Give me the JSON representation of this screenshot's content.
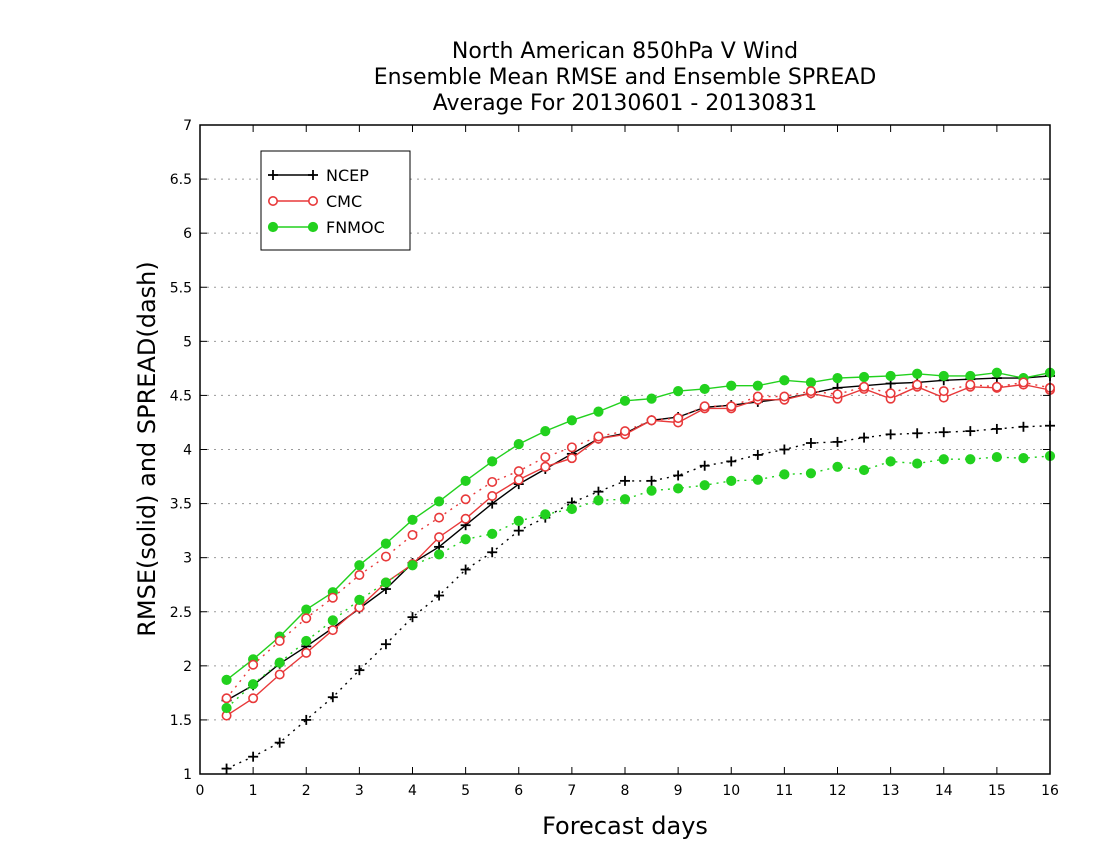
{
  "chart_data": {
    "type": "line",
    "title": [
      "North American 850hPa V Wind",
      "Ensemble Mean RMSE and Ensemble SPREAD",
      "Average For 20130601 - 20130831"
    ],
    "xlabel": "Forecast days",
    "ylabel": "RMSE(solid) and SPREAD(dash)",
    "xlim": [
      0,
      16
    ],
    "ylim": [
      1,
      7
    ],
    "xticks": [
      "0",
      "1",
      "2",
      "3",
      "4",
      "5",
      "6",
      "7",
      "8",
      "9",
      "10",
      "11",
      "12",
      "13",
      "14",
      "15",
      "16"
    ],
    "yticks": [
      "1",
      "1.5",
      "2",
      "2.5",
      "3",
      "3.5",
      "4",
      "4.5",
      "5",
      "5.5",
      "6",
      "6.5",
      "7"
    ],
    "grid": "horizontal dotted",
    "legend_position": "top-left",
    "x": [
      0.5,
      1,
      1.5,
      2,
      2.5,
      3,
      3.5,
      4,
      4.5,
      5,
      5.5,
      6,
      6.5,
      7,
      7.5,
      8,
      8.5,
      9,
      9.5,
      10,
      10.5,
      11,
      11.5,
      12,
      12.5,
      13,
      13.5,
      14,
      14.5,
      15,
      15.5,
      16
    ],
    "series": [
      {
        "name": "NCEP",
        "kind": "rmse",
        "color": "#000000",
        "marker": "plus",
        "dashed": false,
        "values": [
          1.68,
          1.82,
          2.02,
          2.18,
          2.35,
          2.53,
          2.71,
          2.95,
          3.1,
          3.3,
          3.5,
          3.68,
          3.82,
          3.96,
          4.1,
          4.15,
          4.27,
          4.3,
          4.39,
          4.41,
          4.44,
          4.47,
          4.52,
          4.57,
          4.59,
          4.61,
          4.62,
          4.64,
          4.65,
          4.66,
          4.66,
          4.68
        ]
      },
      {
        "name": "CMC",
        "kind": "rmse",
        "color": "#e8393a",
        "marker": "open-circle",
        "dashed": false,
        "values": [
          1.54,
          1.7,
          1.92,
          2.12,
          2.33,
          2.54,
          2.77,
          2.94,
          3.19,
          3.36,
          3.57,
          3.72,
          3.84,
          3.92,
          4.1,
          4.14,
          4.27,
          4.25,
          4.38,
          4.38,
          4.46,
          4.46,
          4.52,
          4.47,
          4.56,
          4.47,
          4.58,
          4.48,
          4.58,
          4.57,
          4.6,
          4.55
        ]
      },
      {
        "name": "FNMOC",
        "kind": "rmse",
        "color": "#22d11e",
        "marker": "filled-circle",
        "dashed": false,
        "values": [
          1.87,
          2.06,
          2.27,
          2.52,
          2.68,
          2.93,
          3.13,
          3.35,
          3.52,
          3.71,
          3.89,
          4.05,
          4.17,
          4.27,
          4.35,
          4.45,
          4.47,
          4.54,
          4.56,
          4.59,
          4.59,
          4.64,
          4.62,
          4.66,
          4.67,
          4.68,
          4.7,
          4.68,
          4.68,
          4.71,
          4.66,
          4.71
        ]
      },
      {
        "name": "NCEP",
        "kind": "spread",
        "color": "#000000",
        "marker": "plus",
        "dashed": true,
        "values": [
          1.05,
          1.16,
          1.29,
          1.5,
          1.71,
          1.96,
          2.2,
          2.45,
          2.65,
          2.89,
          3.05,
          3.25,
          3.37,
          3.51,
          3.61,
          3.71,
          3.71,
          3.76,
          3.85,
          3.89,
          3.95,
          4.0,
          4.06,
          4.07,
          4.11,
          4.14,
          4.15,
          4.16,
          4.17,
          4.19,
          4.21,
          4.22
        ]
      },
      {
        "name": "CMC",
        "kind": "spread",
        "color": "#e8393a",
        "marker": "open-circle",
        "dashed": true,
        "values": [
          1.7,
          2.01,
          2.23,
          2.44,
          2.63,
          2.84,
          3.01,
          3.21,
          3.37,
          3.54,
          3.7,
          3.8,
          3.93,
          4.02,
          4.12,
          4.17,
          4.27,
          4.29,
          4.4,
          4.4,
          4.49,
          4.49,
          4.54,
          4.51,
          4.58,
          4.52,
          4.6,
          4.54,
          4.6,
          4.58,
          4.62,
          4.57
        ]
      },
      {
        "name": "FNMOC",
        "kind": "spread",
        "color": "#22d11e",
        "marker": "filled-circle",
        "dashed": true,
        "values": [
          1.61,
          1.83,
          2.03,
          2.23,
          2.42,
          2.61,
          2.77,
          2.93,
          3.03,
          3.17,
          3.22,
          3.34,
          3.4,
          3.45,
          3.53,
          3.54,
          3.62,
          3.64,
          3.67,
          3.71,
          3.72,
          3.77,
          3.78,
          3.84,
          3.81,
          3.89,
          3.87,
          3.91,
          3.91,
          3.93,
          3.92,
          3.94
        ]
      }
    ],
    "legend": [
      {
        "label": "NCEP",
        "color": "#000000",
        "marker": "plus"
      },
      {
        "label": "CMC",
        "color": "#e8393a",
        "marker": "open-circle"
      },
      {
        "label": "FNMOC",
        "color": "#22d11e",
        "marker": "filled-circle"
      }
    ]
  }
}
